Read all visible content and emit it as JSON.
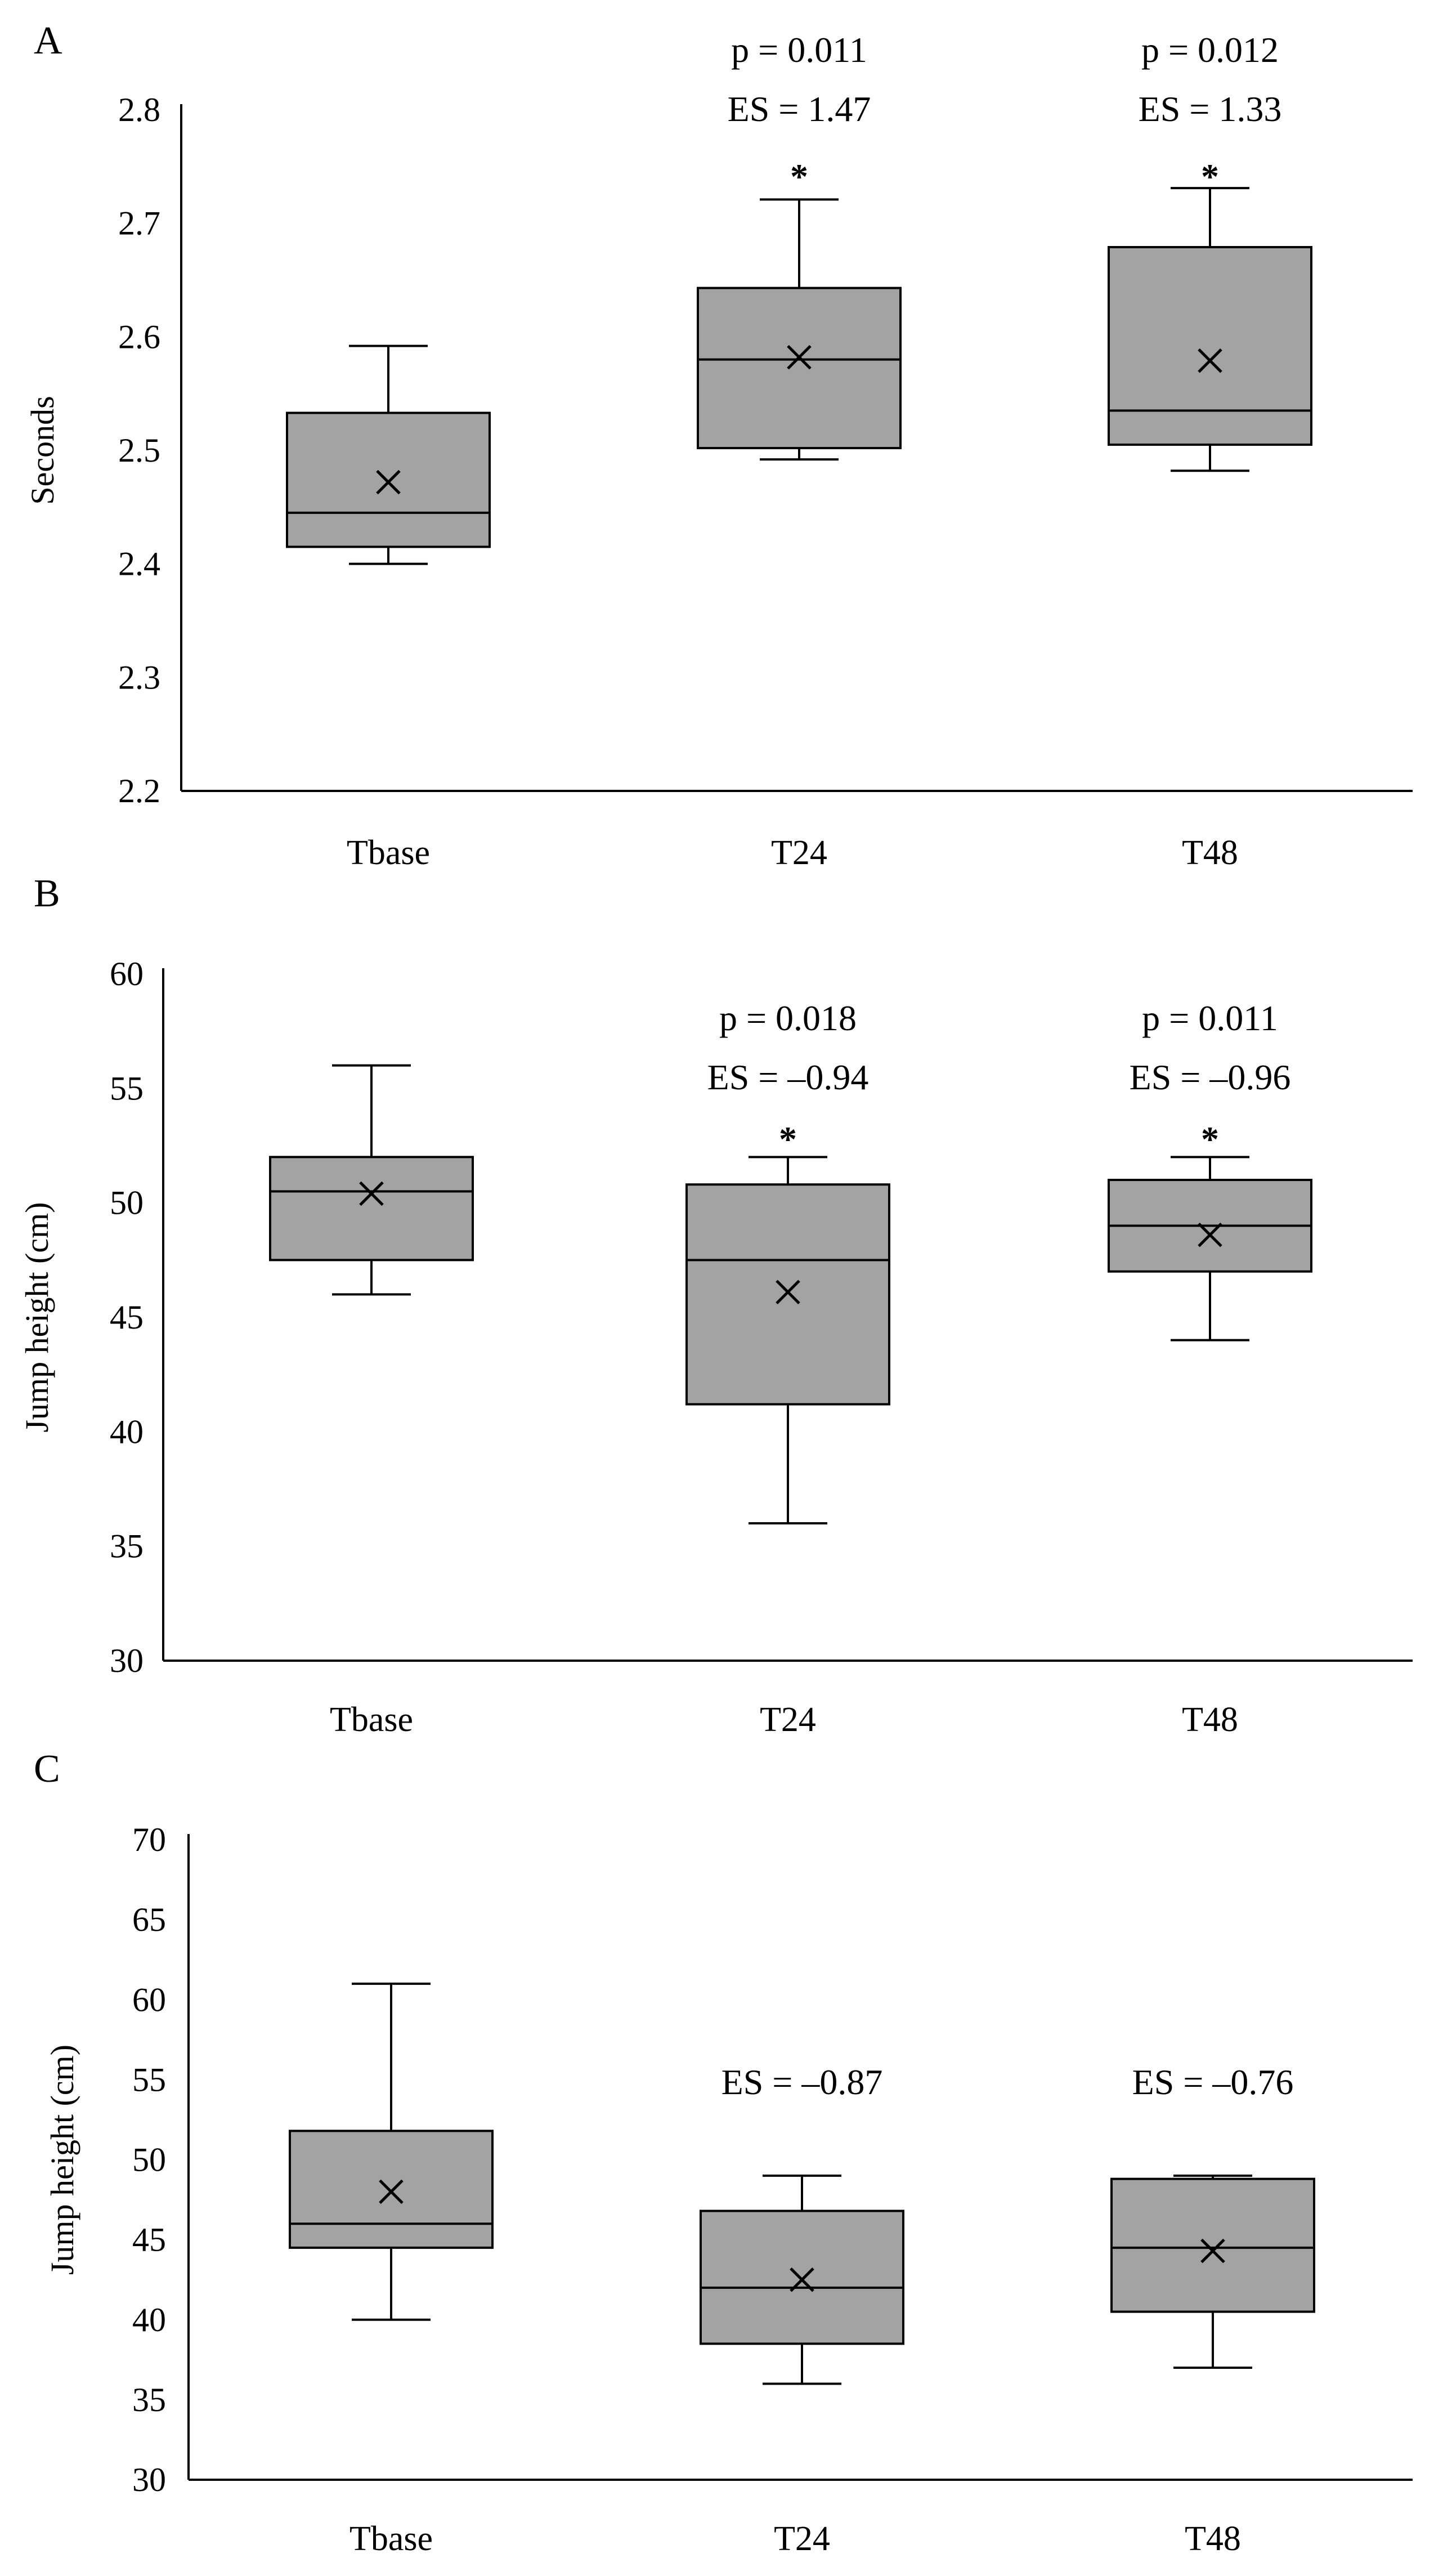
{
  "colors": {
    "box_fill": "#a3a3a3",
    "stroke": "#000000",
    "background": "#ffffff"
  },
  "chart_data": [
    {
      "type": "box",
      "panel": "A",
      "title": "",
      "xlabel": "",
      "ylabel": "Seconds",
      "ylim": [
        2.2,
        2.8
      ],
      "yticks": [
        2.2,
        2.3,
        2.4,
        2.5,
        2.6,
        2.7,
        2.8
      ],
      "ytick_labels": [
        "2.2",
        "2.3",
        "2.4",
        "2.5",
        "2.6",
        "2.7",
        "2.8"
      ],
      "categories": [
        "Tbase",
        "T24",
        "T48"
      ],
      "boxes": [
        {
          "category": "Tbase",
          "min": 2.4,
          "q1": 2.415,
          "median": 2.445,
          "q3": 2.533,
          "max": 2.592,
          "mean": 2.472
        },
        {
          "category": "T24",
          "min": 2.492,
          "q1": 2.502,
          "median": 2.58,
          "q3": 2.643,
          "max": 2.721,
          "mean": 2.582
        },
        {
          "category": "T48",
          "min": 2.482,
          "q1": 2.505,
          "median": 2.535,
          "q3": 2.679,
          "max": 2.731,
          "mean": 2.579
        }
      ],
      "annotations": [
        {
          "category": "T24",
          "p": "p = 0.011",
          "es": "ES = 1.47",
          "star": "*"
        },
        {
          "category": "T48",
          "p": "p = 0.012",
          "es": "ES = 1.33",
          "star": "*"
        }
      ]
    },
    {
      "type": "box",
      "panel": "B",
      "title": "",
      "xlabel": "",
      "ylabel": "Jump height (cm)",
      "ylim": [
        30,
        60
      ],
      "yticks": [
        30,
        35,
        40,
        45,
        50,
        55,
        60
      ],
      "ytick_labels": [
        "30",
        "35",
        "40",
        "45",
        "50",
        "55",
        "60"
      ],
      "categories": [
        "Tbase",
        "T24",
        "T48"
      ],
      "boxes": [
        {
          "category": "Tbase",
          "min": 46,
          "q1": 47.5,
          "median": 50.5,
          "q3": 52,
          "max": 56,
          "mean": 50.4
        },
        {
          "category": "T24",
          "min": 36,
          "q1": 41.2,
          "median": 47.5,
          "q3": 50.8,
          "max": 52,
          "mean": 46.1
        },
        {
          "category": "T48",
          "min": 44,
          "q1": 47,
          "median": 49,
          "q3": 51,
          "max": 52,
          "mean": 48.6
        }
      ],
      "annotations": [
        {
          "category": "T24",
          "p": "p = 0.018",
          "es": "ES = –0.94",
          "star": "*"
        },
        {
          "category": "T48",
          "p": "p = 0.011",
          "es": "ES = –0.96",
          "star": "*"
        }
      ]
    },
    {
      "type": "box",
      "panel": "C",
      "title": "",
      "xlabel": "",
      "ylabel": "Jump height (cm)",
      "ylim": [
        30,
        70
      ],
      "yticks": [
        30,
        35,
        40,
        45,
        50,
        55,
        60,
        65,
        70
      ],
      "ytick_labels": [
        "30",
        "35",
        "40",
        "45",
        "50",
        "55",
        "60",
        "65",
        "70"
      ],
      "categories": [
        "Tbase",
        "T24",
        "T48"
      ],
      "boxes": [
        {
          "category": "Tbase",
          "min": 40,
          "q1": 44.5,
          "median": 46,
          "q3": 51.8,
          "max": 61,
          "mean": 48
        },
        {
          "category": "T24",
          "min": 36,
          "q1": 38.5,
          "median": 42,
          "q3": 46.8,
          "max": 49,
          "mean": 42.5
        },
        {
          "category": "T48",
          "min": 37,
          "q1": 40.5,
          "median": 44.5,
          "q3": 48.8,
          "max": 49,
          "mean": 44.3
        }
      ],
      "annotations": [
        {
          "category": "T24",
          "es": "ES = –0.87"
        },
        {
          "category": "T48",
          "es": "ES = –0.76"
        }
      ]
    }
  ]
}
